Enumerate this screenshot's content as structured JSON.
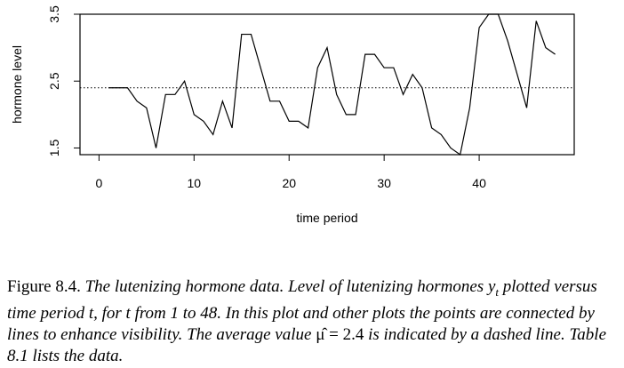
{
  "chart_data": {
    "type": "line",
    "title": "",
    "xlabel": "time period",
    "ylabel": "hormone level",
    "xlim": [
      -2,
      50
    ],
    "ylim": [
      1.4,
      3.5
    ],
    "x_ticks": [
      0,
      10,
      20,
      30,
      40
    ],
    "x_tick_labels": [
      "0",
      "10",
      "20",
      "30",
      "40"
    ],
    "y_ticks": [
      1.5,
      2.5,
      3.5
    ],
    "y_tick_labels": [
      "1.5",
      "2.5",
      "3.5"
    ],
    "grid": false,
    "reference_line": {
      "y": 2.4,
      "style": "dotted"
    },
    "series": [
      {
        "x": [
          1,
          2,
          3,
          4,
          5,
          6,
          7,
          8,
          9,
          10,
          11,
          12,
          13,
          14,
          15,
          16,
          17,
          18,
          19,
          20,
          21,
          22,
          23,
          24,
          25,
          26,
          27,
          28,
          29,
          30,
          31,
          32,
          33,
          34,
          35,
          36,
          37,
          38,
          39,
          40,
          41,
          42,
          43,
          44,
          45,
          46,
          47,
          48
        ],
        "values": [
          2.4,
          2.4,
          2.4,
          2.2,
          2.1,
          1.5,
          2.3,
          2.3,
          2.5,
          2.0,
          1.9,
          1.7,
          2.2,
          1.8,
          3.2,
          3.2,
          2.7,
          2.2,
          2.2,
          1.9,
          1.9,
          1.8,
          2.7,
          3.0,
          2.3,
          2.0,
          2.0,
          2.9,
          2.9,
          2.7,
          2.7,
          2.3,
          2.6,
          2.4,
          1.8,
          1.7,
          1.5,
          1.4,
          2.1,
          3.3,
          3.5,
          3.5,
          3.1,
          2.6,
          2.1,
          3.4,
          3.0,
          2.9
        ]
      }
    ]
  },
  "caption": {
    "label": "Figure 8.4.",
    "part1": "The lutenizing hormone data. Level of lutenizing hormones",
    "yt": "y",
    "yt_sub": "t",
    "part2": "plotted versus time period",
    "t1": "t",
    "part3": ", for",
    "t2": "t",
    "part4": "from 1 to 48. In this plot and other plots the points are connected by lines to enhance visibility. The average value",
    "mu": "μ̂ = 2.4",
    "part5": "is indicated by a dashed line. Table 8.1 lists the data."
  }
}
